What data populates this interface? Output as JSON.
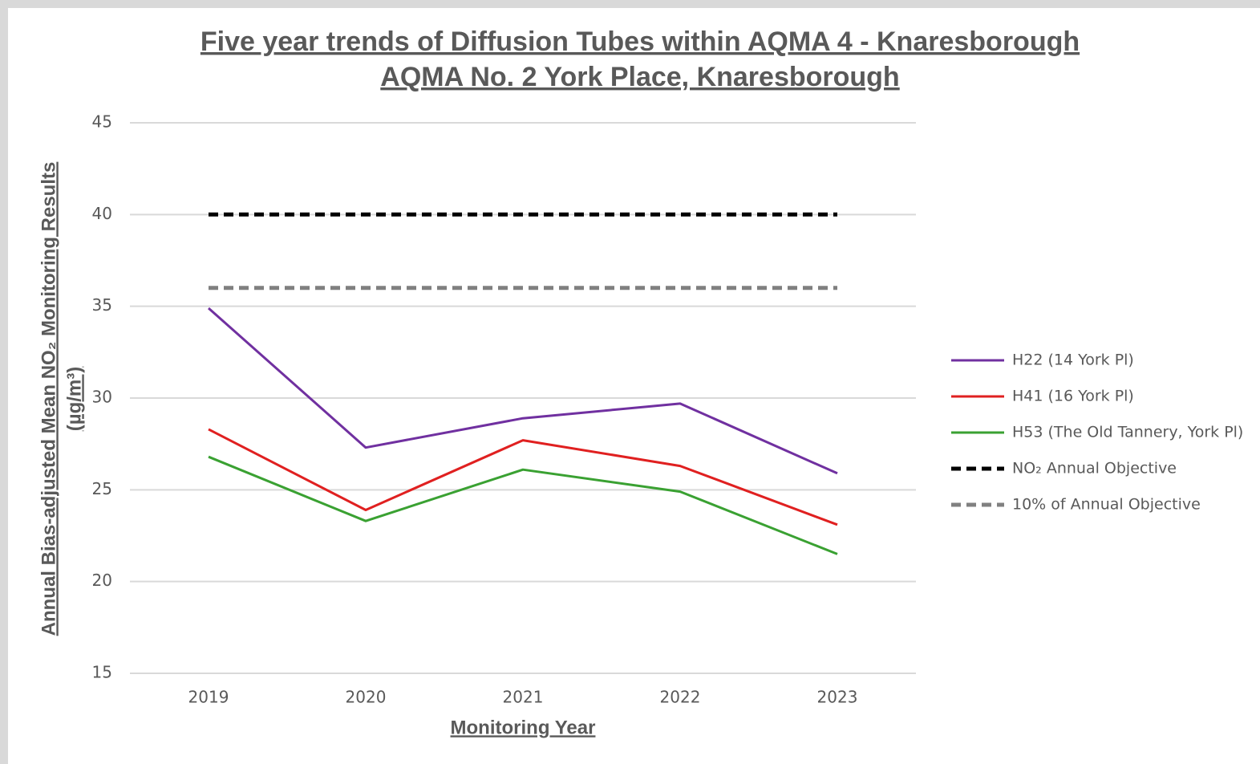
{
  "chart_data": {
    "type": "line",
    "title": "Five year trends of Diffusion Tubes within AQMA 4 - Knaresborough",
    "subtitle": "AQMA No. 2 York Place, Knaresborough",
    "x_label": "Monitoring Year",
    "y_label": [
      "Annual Bias-adjusted Mean NO₂ Monitoring Results",
      "(µg/m³)"
    ],
    "categories": [
      "2019",
      "2020",
      "2021",
      "2022",
      "2023"
    ],
    "series": [
      {
        "name": "H22 (14 York Pl)",
        "color": "#7030a0",
        "dashed": false,
        "values": [
          34.9,
          27.3,
          28.9,
          29.7,
          25.9
        ]
      },
      {
        "name": "H41 (16 York Pl)",
        "color": "#e02020",
        "dashed": false,
        "values": [
          28.3,
          23.9,
          27.7,
          26.3,
          23.1
        ]
      },
      {
        "name": "H53 (The Old Tannery, York Pl)",
        "color": "#3aa132",
        "dashed": false,
        "values": [
          26.8,
          23.3,
          26.1,
          24.9,
          21.5
        ]
      },
      {
        "name": "NO₂ Annual Objective",
        "color": "#000000",
        "dashed": true,
        "values": [
          40,
          40,
          40,
          40,
          40
        ]
      },
      {
        "name": "10% of Annual Objective",
        "color": "#808080",
        "dashed": true,
        "values": [
          36,
          36,
          36,
          36,
          36
        ]
      }
    ],
    "ylim": [
      15,
      45
    ],
    "yticks": [
      15,
      20,
      25,
      30,
      35,
      40,
      45
    ],
    "grid": true,
    "legend": "right"
  }
}
